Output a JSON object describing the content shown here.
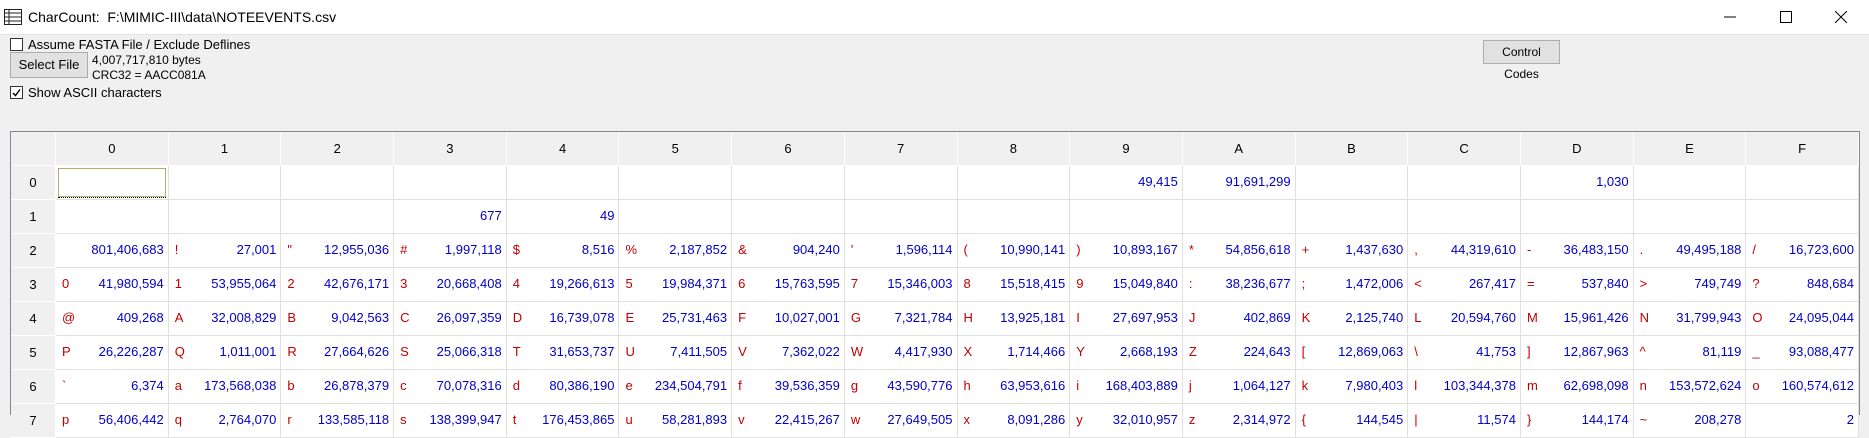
{
  "window": {
    "title": "CharCount:  F:\\MIMIC-III\\data\\NOTEEVENTS.csv"
  },
  "controls": {
    "fasta_label": "Assume FASTA File / Exclude Deflines",
    "fasta_checked": false,
    "select_file_label": "Select File",
    "file_size": "4,007,717,810 bytes",
    "crc": "CRC32 = AACC081A",
    "show_ascii_label": "Show ASCII characters",
    "show_ascii_checked": true,
    "control_codes_label": "Control Codes"
  },
  "grid": {
    "columns": [
      "0",
      "1",
      "2",
      "3",
      "4",
      "5",
      "6",
      "7",
      "8",
      "9",
      "A",
      "B",
      "C",
      "D",
      "E",
      "F"
    ],
    "rows": [
      {
        "label": "0",
        "cells": [
          [
            "",
            ""
          ],
          [
            "",
            ""
          ],
          [
            "",
            ""
          ],
          [
            "",
            ""
          ],
          [
            "",
            ""
          ],
          [
            "",
            ""
          ],
          [
            "",
            ""
          ],
          [
            "",
            ""
          ],
          [
            "",
            ""
          ],
          [
            "",
            "49,415"
          ],
          [
            "",
            "91,691,299"
          ],
          [
            "",
            ""
          ],
          [
            "",
            ""
          ],
          [
            "",
            "1,030"
          ],
          [
            "",
            ""
          ],
          [
            "",
            ""
          ]
        ]
      },
      {
        "label": "1",
        "cells": [
          [
            "",
            ""
          ],
          [
            "",
            ""
          ],
          [
            "",
            ""
          ],
          [
            "",
            "677"
          ],
          [
            "",
            "49"
          ],
          [
            "",
            ""
          ],
          [
            "",
            ""
          ],
          [
            "",
            ""
          ],
          [
            "",
            ""
          ],
          [
            "",
            ""
          ],
          [
            "",
            ""
          ],
          [
            "",
            ""
          ],
          [
            "",
            ""
          ],
          [
            "",
            ""
          ],
          [
            "",
            ""
          ],
          [
            "",
            ""
          ]
        ]
      },
      {
        "label": "2",
        "cells": [
          [
            "",
            "801,406,683"
          ],
          [
            "!",
            "27,001"
          ],
          [
            "\"",
            "12,955,036"
          ],
          [
            "#",
            "1,997,118"
          ],
          [
            "$",
            "8,516"
          ],
          [
            "%",
            "2,187,852"
          ],
          [
            "&",
            "904,240"
          ],
          [
            "'",
            "1,596,114"
          ],
          [
            "(",
            "10,990,141"
          ],
          [
            ")",
            "10,893,167"
          ],
          [
            "*",
            "54,856,618"
          ],
          [
            "+",
            "1,437,630"
          ],
          [
            ",",
            "44,319,610"
          ],
          [
            "-",
            "36,483,150"
          ],
          [
            ".",
            "49,495,188"
          ],
          [
            "/",
            "16,723,600"
          ]
        ]
      },
      {
        "label": "3",
        "cells": [
          [
            "0",
            "41,980,594"
          ],
          [
            "1",
            "53,955,064"
          ],
          [
            "2",
            "42,676,171"
          ],
          [
            "3",
            "20,668,408"
          ],
          [
            "4",
            "19,266,613"
          ],
          [
            "5",
            "19,984,371"
          ],
          [
            "6",
            "15,763,595"
          ],
          [
            "7",
            "15,346,003"
          ],
          [
            "8",
            "15,518,415"
          ],
          [
            "9",
            "15,049,840"
          ],
          [
            ":",
            "38,236,677"
          ],
          [
            ";",
            "1,472,006"
          ],
          [
            "<",
            "267,417"
          ],
          [
            "=",
            "537,840"
          ],
          [
            ">",
            "749,749"
          ],
          [
            "?",
            "848,684"
          ]
        ]
      },
      {
        "label": "4",
        "cells": [
          [
            "@",
            "409,268"
          ],
          [
            "A",
            "32,008,829"
          ],
          [
            "B",
            "9,042,563"
          ],
          [
            "C",
            "26,097,359"
          ],
          [
            "D",
            "16,739,078"
          ],
          [
            "E",
            "25,731,463"
          ],
          [
            "F",
            "10,027,001"
          ],
          [
            "G",
            "7,321,784"
          ],
          [
            "H",
            "13,925,181"
          ],
          [
            "I",
            "27,697,953"
          ],
          [
            "J",
            "402,869"
          ],
          [
            "K",
            "2,125,740"
          ],
          [
            "L",
            "20,594,760"
          ],
          [
            "M",
            "15,961,426"
          ],
          [
            "N",
            "31,799,943"
          ],
          [
            "O",
            "24,095,044"
          ]
        ]
      },
      {
        "label": "5",
        "cells": [
          [
            "P",
            "26,226,287"
          ],
          [
            "Q",
            "1,011,001"
          ],
          [
            "R",
            "27,664,626"
          ],
          [
            "S",
            "25,066,318"
          ],
          [
            "T",
            "31,653,737"
          ],
          [
            "U",
            "7,411,505"
          ],
          [
            "V",
            "7,362,022"
          ],
          [
            "W",
            "4,417,930"
          ],
          [
            "X",
            "1,714,466"
          ],
          [
            "Y",
            "2,668,193"
          ],
          [
            "Z",
            "224,643"
          ],
          [
            "[",
            "12,869,063"
          ],
          [
            "\\",
            "41,753"
          ],
          [
            "]",
            "12,867,963"
          ],
          [
            "^",
            "81,119"
          ],
          [
            "_",
            "93,088,477"
          ]
        ]
      },
      {
        "label": "6",
        "cells": [
          [
            "`",
            "6,374"
          ],
          [
            "a",
            "173,568,038"
          ],
          [
            "b",
            "26,878,379"
          ],
          [
            "c",
            "70,078,316"
          ],
          [
            "d",
            "80,386,190"
          ],
          [
            "e",
            "234,504,791"
          ],
          [
            "f",
            "39,536,359"
          ],
          [
            "g",
            "43,590,776"
          ],
          [
            "h",
            "63,953,616"
          ],
          [
            "i",
            "168,403,889"
          ],
          [
            "j",
            "1,064,127"
          ],
          [
            "k",
            "7,980,403"
          ],
          [
            "l",
            "103,344,378"
          ],
          [
            "m",
            "62,698,098"
          ],
          [
            "n",
            "153,572,624"
          ],
          [
            "o",
            "160,574,612"
          ]
        ]
      },
      {
        "label": "7",
        "cells": [
          [
            "p",
            "56,406,442"
          ],
          [
            "q",
            "2,764,070"
          ],
          [
            "r",
            "133,585,118"
          ],
          [
            "s",
            "138,399,947"
          ],
          [
            "t",
            "176,453,865"
          ],
          [
            "u",
            "58,281,893"
          ],
          [
            "v",
            "22,415,267"
          ],
          [
            "w",
            "27,649,505"
          ],
          [
            "x",
            "8,091,286"
          ],
          [
            "y",
            "32,010,957"
          ],
          [
            "z",
            "2,314,972"
          ],
          [
            "{",
            "144,545"
          ],
          [
            "|",
            "11,574"
          ],
          [
            "}",
            "144,174"
          ],
          [
            "~",
            "208,278"
          ],
          [
            "",
            "2"
          ]
        ]
      }
    ]
  }
}
